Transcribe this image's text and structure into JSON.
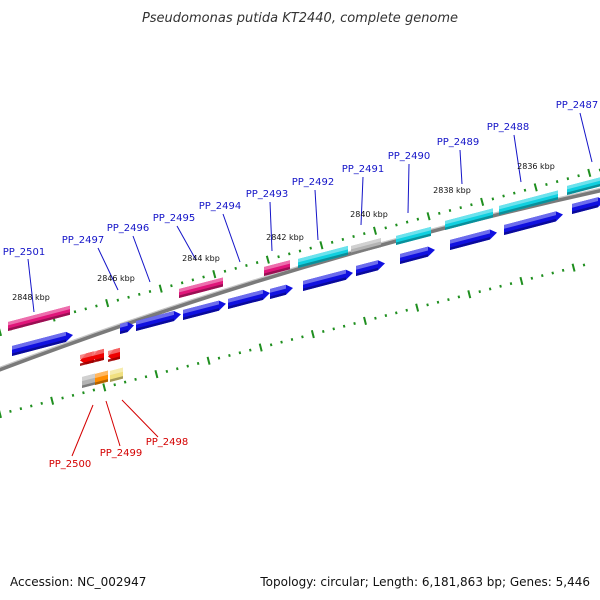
{
  "title": "Pseudomonas putida KT2440, complete genome",
  "footer": {
    "accession": "Accession: NC_002947",
    "info": "Topology: circular; Length: 6,181,863 bp; Genes: 5,446"
  },
  "colors": {
    "backbone": "#909090",
    "tick": "#1f8f1f",
    "blue_gene": "#1010e0",
    "magenta_gene": "#e0157a",
    "cyan_gene": "#10d0e0",
    "gray_gene": "#b4b4b4",
    "red_gene": "#ee0000",
    "orange_gene": "#ff8c00",
    "yellow_gene": "#f0e080",
    "label_blue": "#1414c8",
    "label_red": "#d40000"
  },
  "kbp_labels": [
    "2848 kbp",
    "2846 kbp",
    "2844 kbp",
    "2842 kbp",
    "2840 kbp",
    "2838 kbp",
    "2836 kbp"
  ],
  "gene_labels_top": [
    "PP_2501",
    "PP_2497",
    "PP_2496",
    "PP_2495",
    "PP_2494",
    "PP_2493",
    "PP_2492",
    "PP_2491",
    "PP_2490",
    "PP_2489",
    "PP_2488",
    "PP_2487"
  ],
  "gene_labels_bottom": [
    "PP_2500",
    "PP_2499",
    "PP_2498"
  ]
}
